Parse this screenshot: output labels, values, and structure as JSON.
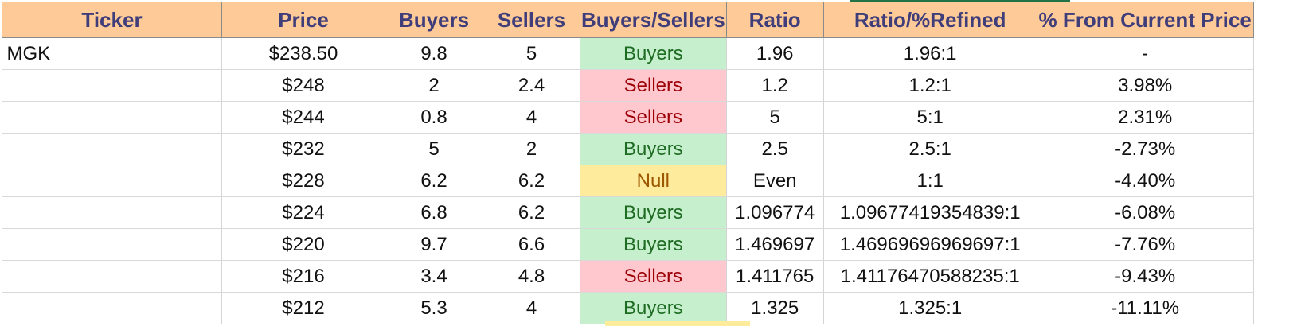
{
  "table": {
    "headers": [
      "Ticker",
      "Price",
      "Buyers",
      "Sellers",
      "Buyers/Sellers",
      "Ratio",
      "Ratio/%Refined",
      "% From Current Price"
    ],
    "rows": [
      {
        "ticker": "MGK",
        "price": "$238.50",
        "buyers": "9.8",
        "sellers": "5",
        "verdict": "Buyers",
        "ratio": "1.96",
        "refined": "1.96:1",
        "pct": "-"
      },
      {
        "ticker": "",
        "price": "$248",
        "buyers": "2",
        "sellers": "2.4",
        "verdict": "Sellers",
        "ratio": "1.2",
        "refined": "1.2:1",
        "pct": "3.98%"
      },
      {
        "ticker": "",
        "price": "$244",
        "buyers": "0.8",
        "sellers": "4",
        "verdict": "Sellers",
        "ratio": "5",
        "refined": "5:1",
        "pct": "2.31%"
      },
      {
        "ticker": "",
        "price": "$232",
        "buyers": "5",
        "sellers": "2",
        "verdict": "Buyers",
        "ratio": "2.5",
        "refined": "2.5:1",
        "pct": "-2.73%"
      },
      {
        "ticker": "",
        "price": "$228",
        "buyers": "6.2",
        "sellers": "6.2",
        "verdict": "Null",
        "ratio": "Even",
        "refined": "1:1",
        "pct": "-4.40%"
      },
      {
        "ticker": "",
        "price": "$224",
        "buyers": "6.8",
        "sellers": "6.2",
        "verdict": "Buyers",
        "ratio": "1.096774",
        "refined": "1.09677419354839:1",
        "pct": "-6.08%"
      },
      {
        "ticker": "",
        "price": "$220",
        "buyers": "9.7",
        "sellers": "6.6",
        "verdict": "Buyers",
        "ratio": "1.469697",
        "refined": "1.46969696969697:1",
        "pct": "-7.76%"
      },
      {
        "ticker": "",
        "price": "$216",
        "buyers": "3.4",
        "sellers": "4.8",
        "verdict": "Sellers",
        "ratio": "1.411765",
        "refined": "1.41176470588235:1",
        "pct": "-9.43%"
      },
      {
        "ticker": "",
        "price": "$212",
        "buyers": "5.3",
        "sellers": "4",
        "verdict": "Buyers",
        "ratio": "1.325",
        "refined": "1.325:1",
        "pct": "-11.11%"
      }
    ]
  },
  "colors": {
    "header_bg": "#fecb98",
    "header_text": "#3f3e7a",
    "buyers_bg": "#c6efce",
    "buyers_text": "#1e6b22",
    "sellers_bg": "#ffc7ce",
    "sellers_text": "#9c0006",
    "null_bg": "#ffeb9c",
    "null_text": "#9c5700"
  }
}
